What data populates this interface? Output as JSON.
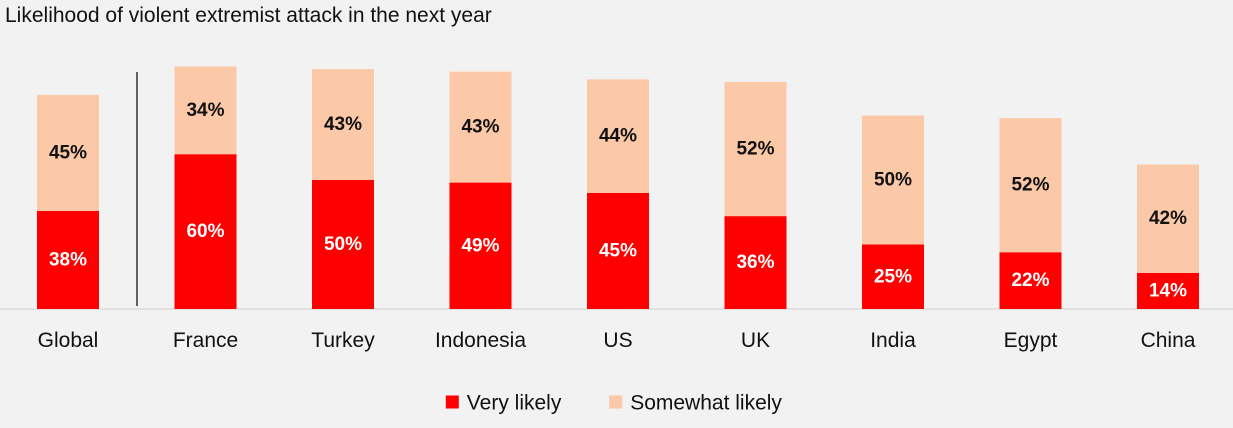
{
  "chart_data": {
    "type": "bar",
    "stacked": true,
    "title": "Likelihood of violent extremist attack in the next year",
    "categories": [
      "Global",
      "France",
      "Turkey",
      "Indonesia",
      "US",
      "UK",
      "India",
      "Egypt",
      "China"
    ],
    "series": [
      {
        "name": "Very likely",
        "color": "#ff0000",
        "label_color": "#ffffff",
        "values": [
          38,
          60,
          50,
          49,
          45,
          36,
          25,
          22,
          14
        ]
      },
      {
        "name": "Somewhat likely",
        "color": "#fbc8a8",
        "label_color": "#111111",
        "values": [
          45,
          34,
          43,
          43,
          44,
          52,
          50,
          52,
          42
        ]
      }
    ],
    "value_suffix": "%",
    "ylim": [
      0,
      100
    ],
    "grid": false,
    "legend_position": "bottom",
    "separator_after_category": "Global"
  }
}
